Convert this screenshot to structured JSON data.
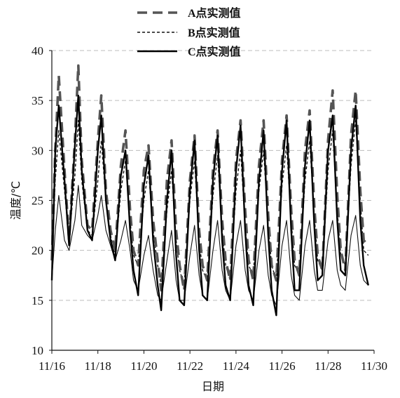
{
  "chart_data": {
    "type": "line",
    "title": "",
    "xlabel": "日期",
    "ylabel": "温度/℃",
    "ylim": [
      10,
      40
    ],
    "yticks": [
      10,
      15,
      20,
      25,
      30,
      35,
      40
    ],
    "xlim": [
      "11/16",
      "11/30"
    ],
    "x_tick_labels": [
      "11/16",
      "11/18",
      "11/20",
      "11/22",
      "11/24",
      "11/26",
      "11/28",
      "11/30"
    ],
    "grid": "horizontal dashed",
    "legend_position": "top-center",
    "series": [
      {
        "name": "A点实测值",
        "style": "long-dash",
        "color": "#555555",
        "x_day": [
          16.0,
          16.15,
          16.3,
          16.55,
          16.75,
          17.0,
          17.15,
          17.3,
          17.55,
          17.75,
          18.0,
          18.15,
          18.35,
          18.55,
          18.75,
          19.0,
          19.2,
          19.4,
          19.55,
          19.75,
          20.0,
          20.2,
          20.4,
          20.6,
          20.75,
          21.0,
          21.2,
          21.4,
          21.55,
          21.75,
          22.0,
          22.2,
          22.4,
          22.55,
          22.75,
          23.0,
          23.2,
          23.4,
          23.55,
          23.75,
          24.0,
          24.2,
          24.4,
          24.55,
          24.75,
          25.0,
          25.2,
          25.4,
          25.55,
          25.75,
          26.0,
          26.2,
          26.4,
          26.55,
          26.75,
          27.0,
          27.2,
          27.4,
          27.55,
          27.75,
          28.0,
          28.2,
          28.4,
          28.55,
          28.75,
          29.0,
          29.2,
          29.4,
          29.55,
          29.75
        ],
        "y": [
          19.0,
          30.0,
          37.5,
          28.0,
          21.0,
          31.0,
          38.5,
          29.0,
          22.5,
          22.0,
          31.0,
          35.5,
          26.0,
          22.0,
          20.0,
          28.5,
          32.0,
          24.0,
          20.0,
          18.5,
          28.0,
          30.5,
          23.0,
          19.0,
          16.0,
          27.0,
          31.0,
          22.0,
          18.5,
          16.0,
          27.0,
          31.5,
          22.0,
          18.5,
          17.0,
          28.0,
          32.0,
          23.0,
          19.0,
          17.0,
          29.0,
          33.0,
          24.0,
          19.0,
          17.0,
          28.5,
          33.0,
          23.5,
          18.5,
          17.0,
          29.0,
          33.5,
          24.0,
          19.0,
          17.5,
          30.0,
          34.0,
          24.5,
          19.5,
          18.0,
          31.0,
          36.0,
          25.5,
          20.0,
          18.0,
          31.5,
          36.0,
          26.0,
          21.0,
          20.5
        ]
      },
      {
        "name": "B点实测值",
        "style": "short-dash",
        "color": "#111111",
        "x_day": [
          16.0,
          16.15,
          16.3,
          16.55,
          16.75,
          17.0,
          17.15,
          17.3,
          17.55,
          17.75,
          18.0,
          18.15,
          18.35,
          18.55,
          18.75,
          19.0,
          19.2,
          19.4,
          19.55,
          19.75,
          20.0,
          20.2,
          20.4,
          20.6,
          20.75,
          21.0,
          21.2,
          21.4,
          21.55,
          21.75,
          22.0,
          22.2,
          22.4,
          22.55,
          22.75,
          23.0,
          23.2,
          23.4,
          23.55,
          23.75,
          24.0,
          24.2,
          24.4,
          24.55,
          24.75,
          25.0,
          25.2,
          25.4,
          25.55,
          25.75,
          26.0,
          26.2,
          26.4,
          26.55,
          26.75,
          27.0,
          27.2,
          27.4,
          27.55,
          27.75,
          28.0,
          28.2,
          28.4,
          28.55,
          28.75,
          29.0,
          29.2,
          29.4,
          29.55,
          29.75
        ],
        "y": [
          19.0,
          27.0,
          32.0,
          26.0,
          21.0,
          27.5,
          33.0,
          27.0,
          22.0,
          21.5,
          27.0,
          31.0,
          25.0,
          21.5,
          19.5,
          26.0,
          29.0,
          23.0,
          19.5,
          18.5,
          25.0,
          28.0,
          22.0,
          18.5,
          16.5,
          24.0,
          28.0,
          21.0,
          18.0,
          16.5,
          25.0,
          29.0,
          21.0,
          18.0,
          17.0,
          25.5,
          29.5,
          22.0,
          18.5,
          17.0,
          26.0,
          30.0,
          22.5,
          18.5,
          17.5,
          26.0,
          30.0,
          22.5,
          18.5,
          17.0,
          26.5,
          30.5,
          23.0,
          18.5,
          17.5,
          27.0,
          31.0,
          23.5,
          19.0,
          18.0,
          28.0,
          32.0,
          24.0,
          19.5,
          18.5,
          28.5,
          33.0,
          25.0,
          20.0,
          19.5
        ]
      },
      {
        "name": "C点实测值",
        "style": "solid",
        "color": "#000000",
        "x_day": [
          16.0,
          16.15,
          16.3,
          16.55,
          16.75,
          17.0,
          17.15,
          17.3,
          17.55,
          17.75,
          18.0,
          18.15,
          18.35,
          18.55,
          18.75,
          19.0,
          19.2,
          19.4,
          19.55,
          19.75,
          20.0,
          20.2,
          20.4,
          20.6,
          20.75,
          21.0,
          21.2,
          21.4,
          21.55,
          21.75,
          22.0,
          22.2,
          22.4,
          22.55,
          22.75,
          23.0,
          23.2,
          23.4,
          23.55,
          23.75,
          24.0,
          24.2,
          24.4,
          24.55,
          24.75,
          25.0,
          25.2,
          25.4,
          25.55,
          25.75,
          26.0,
          26.2,
          26.4,
          26.55,
          26.75,
          27.0,
          27.2,
          27.4,
          27.55,
          27.75,
          28.0,
          28.2,
          28.4,
          28.55,
          28.75,
          29.0,
          29.2,
          29.4,
          29.55,
          29.75
        ],
        "y": [
          17.0,
          30.0,
          34.5,
          27.0,
          20.5,
          30.5,
          35.5,
          28.0,
          22.0,
          21.0,
          30.0,
          33.5,
          25.0,
          21.0,
          19.0,
          27.5,
          30.0,
          22.0,
          18.0,
          15.5,
          26.5,
          29.5,
          21.0,
          16.5,
          14.0,
          25.0,
          30.0,
          19.5,
          15.0,
          14.5,
          26.0,
          31.0,
          20.0,
          15.5,
          15.0,
          27.0,
          31.5,
          21.0,
          16.5,
          15.0,
          28.0,
          32.5,
          22.0,
          16.5,
          14.5,
          27.0,
          32.0,
          21.5,
          16.0,
          13.5,
          28.0,
          33.0,
          22.0,
          16.0,
          16.0,
          28.5,
          33.0,
          22.5,
          17.0,
          17.5,
          30.0,
          33.5,
          23.0,
          18.0,
          17.5,
          30.0,
          34.5,
          23.0,
          18.5,
          16.5
        ]
      },
      {
        "name": "",
        "style": "thin-solid",
        "color": "#111111",
        "x_day": [
          16.0,
          16.15,
          16.3,
          16.55,
          16.75,
          17.0,
          17.15,
          17.3,
          17.55,
          17.75,
          18.0,
          18.15,
          18.35,
          18.55,
          18.75,
          19.0,
          19.2,
          19.4,
          19.55,
          19.75,
          20.0,
          20.2,
          20.4,
          20.6,
          20.75,
          21.0,
          21.2,
          21.4,
          21.55,
          21.75,
          22.0,
          22.2,
          22.4,
          22.55,
          22.75,
          23.0,
          23.2,
          23.4,
          23.55,
          23.75,
          24.0,
          24.2,
          24.4,
          24.55,
          24.75,
          25.0,
          25.2,
          25.4,
          25.55,
          25.75,
          26.0,
          26.2,
          26.4,
          26.55,
          26.75,
          27.0,
          27.2,
          27.4,
          27.55,
          27.75,
          28.0,
          28.2,
          28.4,
          28.55,
          28.75,
          29.0,
          29.2,
          29.4,
          29.55,
          29.75
        ],
        "y": [
          17.0,
          22.0,
          25.5,
          21.0,
          20.0,
          23.0,
          26.5,
          22.5,
          21.5,
          21.0,
          23.5,
          25.5,
          22.0,
          20.5,
          19.0,
          21.0,
          23.0,
          20.0,
          17.0,
          16.0,
          19.5,
          21.5,
          18.0,
          15.5,
          15.0,
          19.0,
          22.0,
          17.0,
          15.0,
          15.0,
          19.5,
          22.5,
          17.5,
          15.5,
          15.0,
          20.0,
          23.0,
          18.0,
          16.0,
          15.0,
          20.5,
          23.0,
          18.0,
          16.0,
          15.0,
          20.0,
          22.5,
          17.5,
          15.5,
          14.5,
          20.5,
          23.0,
          17.5,
          15.5,
          15.0,
          20.5,
          23.0,
          18.0,
          16.0,
          16.0,
          21.0,
          23.0,
          18.0,
          16.5,
          16.0,
          21.5,
          23.5,
          18.5,
          17.0,
          16.5
        ]
      }
    ]
  }
}
